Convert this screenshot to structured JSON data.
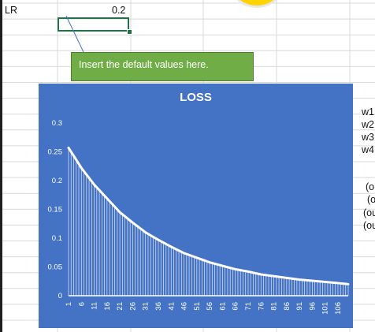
{
  "sheet": {
    "cell_label": "LR",
    "cell_value": "0.2",
    "right_texts": [
      "w1",
      "w2",
      "w3",
      "w4",
      "(o",
      "(o",
      "(ou",
      "(ou"
    ]
  },
  "callout": {
    "text": "Insert the default values here."
  },
  "chart_data": {
    "type": "area",
    "title": "LOSS",
    "xlabel": "",
    "ylabel": "",
    "ylim": [
      0,
      0.3
    ],
    "yticks": [
      "0",
      "0.05",
      "0.1",
      "0.15",
      "0.2",
      "0.25",
      "0.3"
    ],
    "x_tick_labels": [
      "1",
      "6",
      "11",
      "16",
      "21",
      "26",
      "31",
      "36",
      "41",
      "46",
      "51",
      "56",
      "61",
      "66",
      "71",
      "76",
      "81",
      "86",
      "91",
      "96",
      "101",
      "106"
    ],
    "x_count": 110,
    "series": [
      {
        "x": [
          1,
          6,
          11,
          16,
          21,
          26,
          31,
          36,
          41,
          46,
          51,
          56,
          61,
          66,
          71,
          76,
          81,
          86,
          91,
          96,
          101,
          106,
          110
        ],
        "values": [
          0.257,
          0.222,
          0.193,
          0.169,
          0.145,
          0.127,
          0.11,
          0.097,
          0.085,
          0.074,
          0.066,
          0.058,
          0.052,
          0.046,
          0.042,
          0.037,
          0.034,
          0.031,
          0.028,
          0.026,
          0.024,
          0.022,
          0.02
        ]
      }
    ],
    "grid": false,
    "legend": "none",
    "colors": {
      "background": "#4472c4",
      "mark": "#ffffff",
      "text": "#ffffff"
    }
  }
}
